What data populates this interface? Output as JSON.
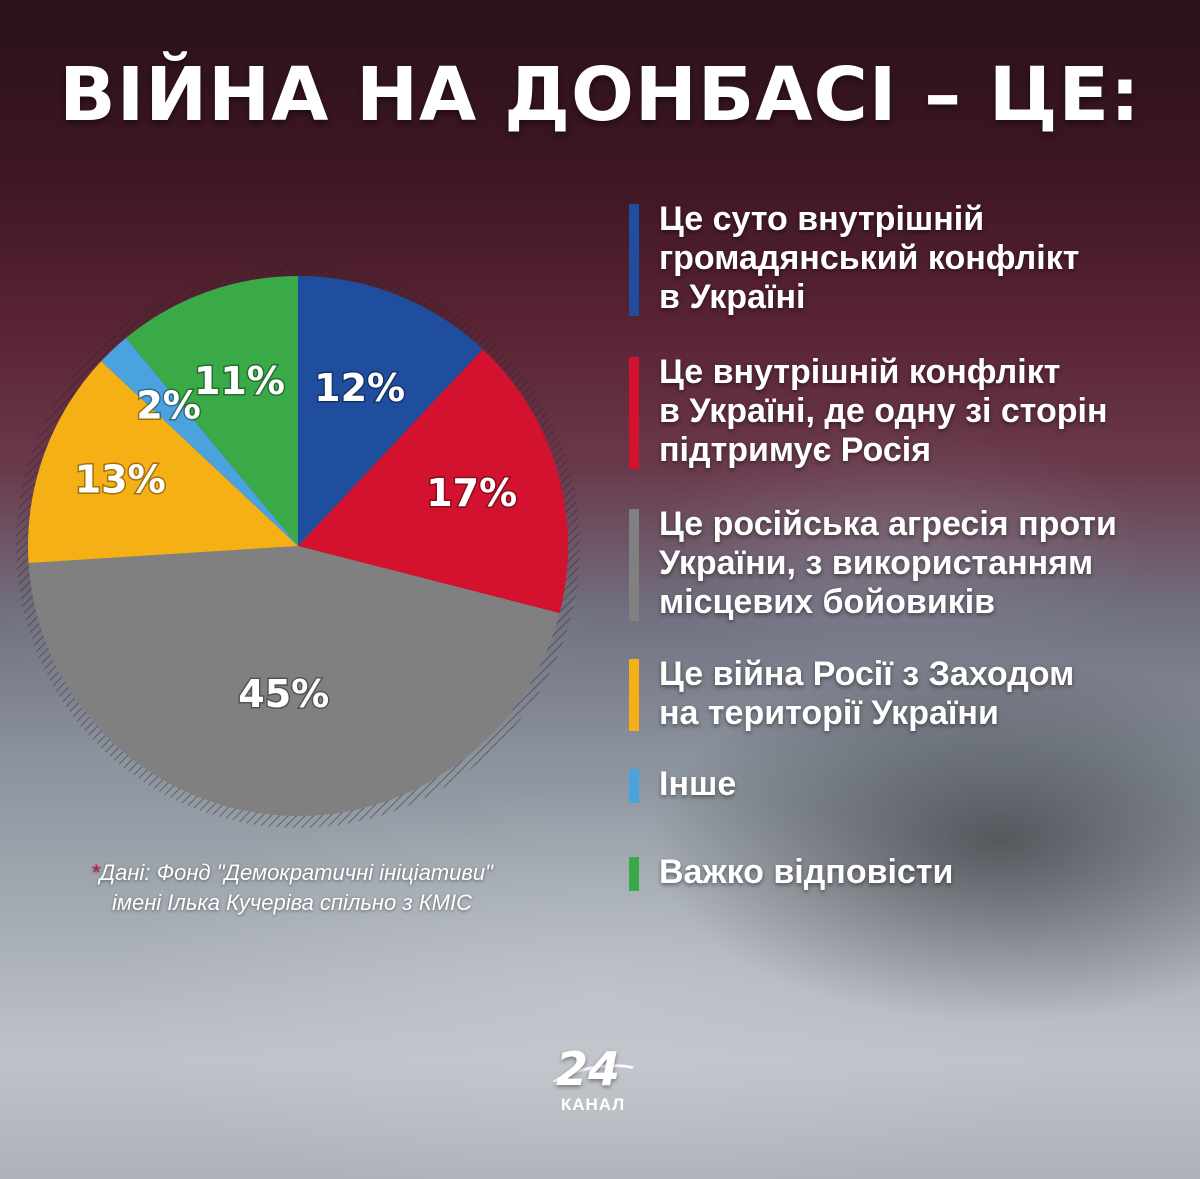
{
  "title": "ВІЙНА НА ДОНБАСІ – ЦЕ:",
  "chart_data": {
    "type": "pie",
    "slices": [
      {
        "label": "Це суто внутрішній громадянський конфлікт в Україні",
        "value": 12,
        "value_label": "12%",
        "color": "#1f4e9e"
      },
      {
        "label": "Це внутрішній конфлікт в Україні, де одну зі сторін підтримує Росія",
        "value": 17,
        "value_label": "17%",
        "color": "#d2122e"
      },
      {
        "label": "Це російська агресія проти України, з використанням місцевих бойовиків",
        "value": 45,
        "value_label": "45%",
        "color": "#808080"
      },
      {
        "label": "Це війна Росії з Заходом на території України",
        "value": 13,
        "value_label": "13%",
        "color": "#f5b015"
      },
      {
        "label": "Інше",
        "value": 2,
        "value_label": "2%",
        "color": "#4aa3df"
      },
      {
        "label": "Важко відповісти",
        "value": 11,
        "value_label": "11%",
        "color": "#3aaa48"
      }
    ]
  },
  "legend": [
    {
      "lines": [
        "Це суто внутрішній",
        "громадянський конфлікт",
        "в Україні"
      ],
      "color": "#1f4e9e"
    },
    {
      "lines": [
        "Це внутрішній конфлікт",
        "в Україні, де одну зі сторін",
        "підтримує Росія"
      ],
      "color": "#d2122e"
    },
    {
      "lines": [
        "Це російська агресія проти",
        "України, з використанням",
        "місцевих бойовиків"
      ],
      "color": "#808080"
    },
    {
      "lines": [
        "Це війна Росії з Заходом",
        "на території України"
      ],
      "color": "#f5b015"
    },
    {
      "lines": [
        "Інше"
      ],
      "color": "#4aa3df"
    },
    {
      "lines": [
        "Важко відповісти"
      ],
      "color": "#3aaa48"
    }
  ],
  "source": {
    "star": "*",
    "line1": "Дані: Фонд \"Демократичні ініціативи\"",
    "line2": "імені Ілька Кучеріва спільно з КМІС"
  },
  "logo": {
    "number": "24",
    "word": "КАНАЛ"
  }
}
